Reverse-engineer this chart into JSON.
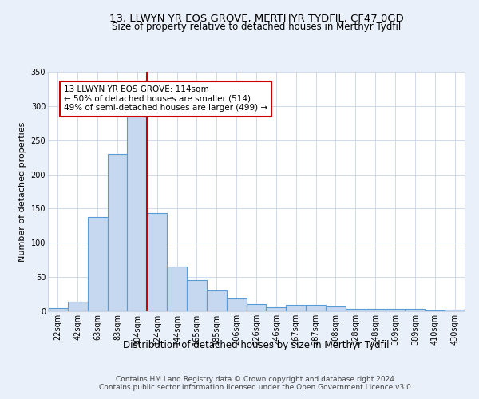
{
  "title": "13, LLWYN YR EOS GROVE, MERTHYR TYDFIL, CF47 0GD",
  "subtitle": "Size of property relative to detached houses in Merthyr Tydfil",
  "xlabel": "Distribution of detached houses by size in Merthyr Tydfil",
  "ylabel": "Number of detached properties",
  "categories": [
    "22sqm",
    "42sqm",
    "63sqm",
    "83sqm",
    "104sqm",
    "124sqm",
    "144sqm",
    "165sqm",
    "185sqm",
    "206sqm",
    "226sqm",
    "246sqm",
    "267sqm",
    "287sqm",
    "308sqm",
    "328sqm",
    "348sqm",
    "369sqm",
    "389sqm",
    "410sqm",
    "430sqm"
  ],
  "values": [
    5,
    14,
    138,
    230,
    286,
    143,
    65,
    46,
    30,
    19,
    11,
    6,
    9,
    9,
    7,
    3,
    4,
    4,
    3,
    1,
    2
  ],
  "bar_color": "#c5d8ef",
  "bar_edge_color": "#5b9bd5",
  "bar_edge_width": 0.8,
  "vline_color": "#cc0000",
  "annotation_text": "13 LLWYN YR EOS GROVE: 114sqm\n← 50% of detached houses are smaller (514)\n49% of semi-detached houses are larger (499) →",
  "annotation_box_color": "#ffffff",
  "annotation_box_edge_color": "#cc0000",
  "ylim": [
    0,
    350
  ],
  "yticks": [
    0,
    50,
    100,
    150,
    200,
    250,
    300,
    350
  ],
  "bg_color": "#eaf0f9",
  "plot_bg_color": "#ffffff",
  "grid_color": "#c8d4e8",
  "footer": "Contains HM Land Registry data © Crown copyright and database right 2024.\nContains public sector information licensed under the Open Government Licence v3.0.",
  "title_fontsize": 9.5,
  "subtitle_fontsize": 8.5,
  "xlabel_fontsize": 8.5,
  "ylabel_fontsize": 8,
  "tick_fontsize": 7,
  "annotation_fontsize": 7.5,
  "footer_fontsize": 6.5
}
